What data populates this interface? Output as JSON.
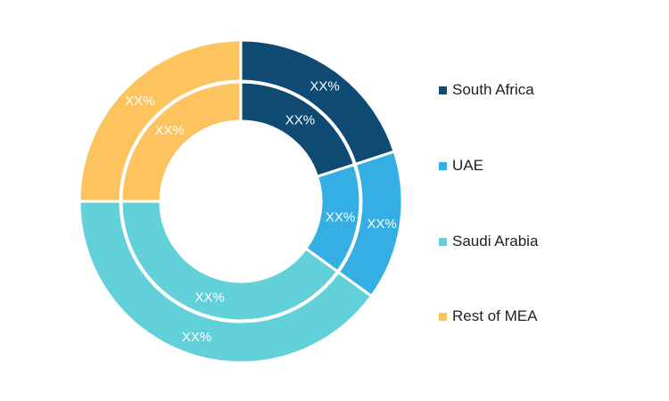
{
  "chart_data": {
    "type": "pie",
    "title": "",
    "categories": [
      "South Africa",
      "UAE",
      "Saudi Arabia",
      "Rest of MEA"
    ],
    "colors": [
      "#0e4a72",
      "#35aee3",
      "#62d0d9",
      "#fcc35f"
    ],
    "series": [
      {
        "ring": "outer",
        "values": [
          20,
          15,
          40,
          25
        ],
        "labels": [
          "XX%",
          "XX%",
          "XX%",
          "XX%"
        ]
      },
      {
        "ring": "inner",
        "values": [
          20,
          15,
          40,
          25
        ],
        "labels": [
          "XX%",
          "XX%",
          "XX%",
          "XX%"
        ]
      }
    ],
    "legend_position": "right"
  }
}
